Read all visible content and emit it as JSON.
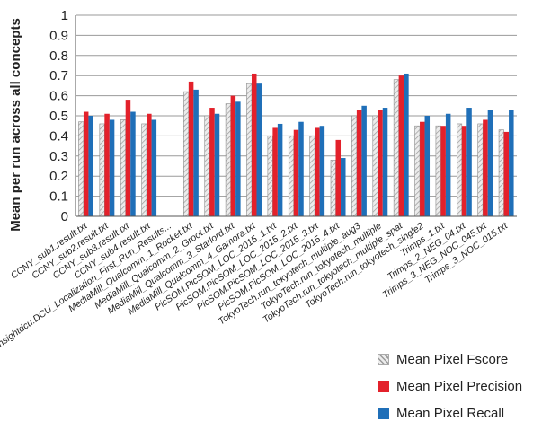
{
  "chart_data": {
    "type": "bar",
    "title": "",
    "xlabel": "",
    "ylabel": "Mean per run across all concepts",
    "ylim": [
      0,
      1
    ],
    "yticks": [
      "0",
      "0.1",
      "0.2",
      "0.3",
      "0.4",
      "0.5",
      "0.6",
      "0.7",
      "0.8",
      "0.9",
      "1"
    ],
    "grid": true,
    "legend_position": "bottom-right",
    "categories": [
      "CCNY_sub1.result.txt",
      "CCNY_sub2.result.txt",
      "CCNY_sub3.result.txt",
      "CCNY_sub4.result.txt",
      "insightdcu.DCU_Localization_First_Run_Results...",
      "MediaMill_Qualcomm_1_Rocket.txt",
      "MediaMill_Qualcomm_2_Groot.txt",
      "MediaMill_Qualcomm_3_Starlord.txt",
      "MediaMill_Qualcomm_4_Gamora.txt",
      "PicSOM.PicSOM_LOC_2015_1.txt",
      "PicSOM.PicSOM_LOC_2015_2.txt",
      "PicSOM.PicSOM_LOC_2015_3.txt",
      "PicSOM.PicSOM_LOC_2015_4.txt",
      "TokyoTech.run_tokyotech_multiple_aug3",
      "TokyoTech.run_tokyotech_multiple",
      "TokyoTech.run_tokyotech_multiple_spat",
      "TokyoTech.run_tokyotech_single2",
      "Trimps_1.txt",
      "Trimps_2_NEG_04.txt",
      "Trimps_3_NEG_NOC_045.txt",
      "Trimps_3_NOC_015.txt"
    ],
    "series": [
      {
        "name": "Mean Pixel Fscore",
        "color": "#d0d0d0",
        "pattern": "hatched",
        "values": [
          0.47,
          0.46,
          0.48,
          0.46,
          null,
          0.62,
          0.5,
          0.56,
          0.66,
          0.4,
          0.4,
          0.4,
          0.28,
          0.5,
          0.5,
          0.68,
          0.45,
          0.45,
          0.46,
          0.46,
          0.43
        ]
      },
      {
        "name": "Mean Pixel Precision",
        "color": "#e3212b",
        "values": [
          0.52,
          0.51,
          0.58,
          0.51,
          null,
          0.67,
          0.54,
          0.6,
          0.71,
          0.44,
          0.43,
          0.44,
          0.38,
          0.53,
          0.53,
          0.7,
          0.47,
          0.45,
          0.45,
          0.48,
          0.42
        ]
      },
      {
        "name": "Mean Pixel Recall",
        "color": "#1f6fb8",
        "values": [
          0.5,
          0.48,
          0.52,
          0.48,
          null,
          0.63,
          0.51,
          0.57,
          0.66,
          0.46,
          0.47,
          0.45,
          0.29,
          0.55,
          0.54,
          0.71,
          0.5,
          0.51,
          0.54,
          0.53,
          0.53
        ]
      }
    ]
  }
}
